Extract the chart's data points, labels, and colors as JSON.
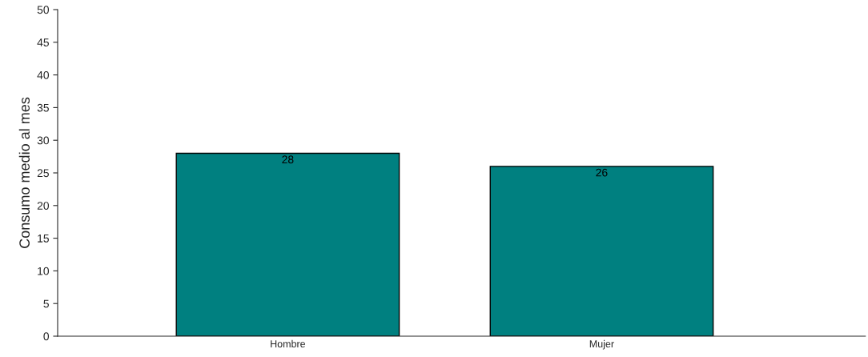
{
  "chart_data": {
    "type": "bar",
    "ylabel": "Consumo medio al mes",
    "categories": [
      "Hombre",
      "Mujer"
    ],
    "values": [
      28,
      26
    ],
    "color": "#008080",
    "ylim": [
      0,
      50
    ],
    "yticks": [
      0,
      5,
      10,
      15,
      20,
      25,
      30,
      35,
      40,
      45,
      50
    ],
    "data_labels": true,
    "grid": false,
    "legend": false
  }
}
